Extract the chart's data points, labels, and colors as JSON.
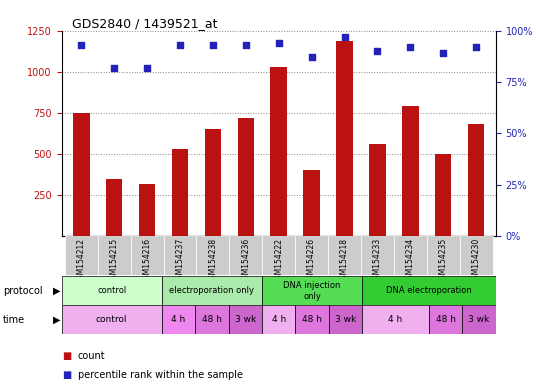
{
  "title": "GDS2840 / 1439521_at",
  "samples": [
    "GSM154212",
    "GSM154215",
    "GSM154216",
    "GSM154237",
    "GSM154238",
    "GSM154236",
    "GSM154222",
    "GSM154226",
    "GSM154218",
    "GSM154233",
    "GSM154234",
    "GSM154235",
    "GSM154230"
  ],
  "counts": [
    750,
    350,
    320,
    530,
    650,
    720,
    1030,
    400,
    1190,
    560,
    790,
    500,
    680
  ],
  "percentile_ranks": [
    93,
    82,
    82,
    93,
    93,
    93,
    94,
    87,
    97,
    90,
    92,
    89,
    92
  ],
  "ylim_left": [
    0,
    1250
  ],
  "ylim_right": [
    0,
    100
  ],
  "yticks_left": [
    250,
    500,
    750,
    1000,
    1250
  ],
  "yticks_right": [
    0,
    25,
    50,
    75,
    100
  ],
  "bar_color": "#bb1111",
  "dot_color": "#2222bb",
  "protocol_defs": [
    {
      "label": "control",
      "start": 0,
      "end": 3,
      "color": "#ccffcc"
    },
    {
      "label": "electroporation only",
      "start": 3,
      "end": 6,
      "color": "#aaeaaa"
    },
    {
      "label": "DNA injection\nonly",
      "start": 6,
      "end": 9,
      "color": "#55dd55"
    },
    {
      "label": "DNA electroporation",
      "start": 9,
      "end": 13,
      "color": "#33cc33"
    }
  ],
  "time_defs": [
    {
      "label": "control",
      "start": 0,
      "end": 3,
      "color": "#f0b0f0"
    },
    {
      "label": "4 h",
      "start": 3,
      "end": 4,
      "color": "#ee88ee"
    },
    {
      "label": "48 h",
      "start": 4,
      "end": 5,
      "color": "#dd77dd"
    },
    {
      "label": "3 wk",
      "start": 5,
      "end": 6,
      "color": "#cc66cc"
    },
    {
      "label": "4 h",
      "start": 6,
      "end": 7,
      "color": "#f0b0f0"
    },
    {
      "label": "48 h",
      "start": 7,
      "end": 8,
      "color": "#dd77dd"
    },
    {
      "label": "3 wk",
      "start": 8,
      "end": 9,
      "color": "#cc66cc"
    },
    {
      "label": "4 h",
      "start": 9,
      "end": 11,
      "color": "#f0b0f0"
    },
    {
      "label": "48 h",
      "start": 11,
      "end": 12,
      "color": "#dd77dd"
    },
    {
      "label": "3 wk",
      "start": 12,
      "end": 13,
      "color": "#cc66cc"
    }
  ],
  "bar_color_legend": "#bb1111",
  "dot_color_legend": "#2222bb",
  "left_tick_color": "#bb1111",
  "right_tick_color": "#2222bb",
  "grid_color": "#888888",
  "tick_label_bg": "#cccccc",
  "background_color": "#ffffff",
  "title_fontsize": 9,
  "bar_width": 0.5
}
